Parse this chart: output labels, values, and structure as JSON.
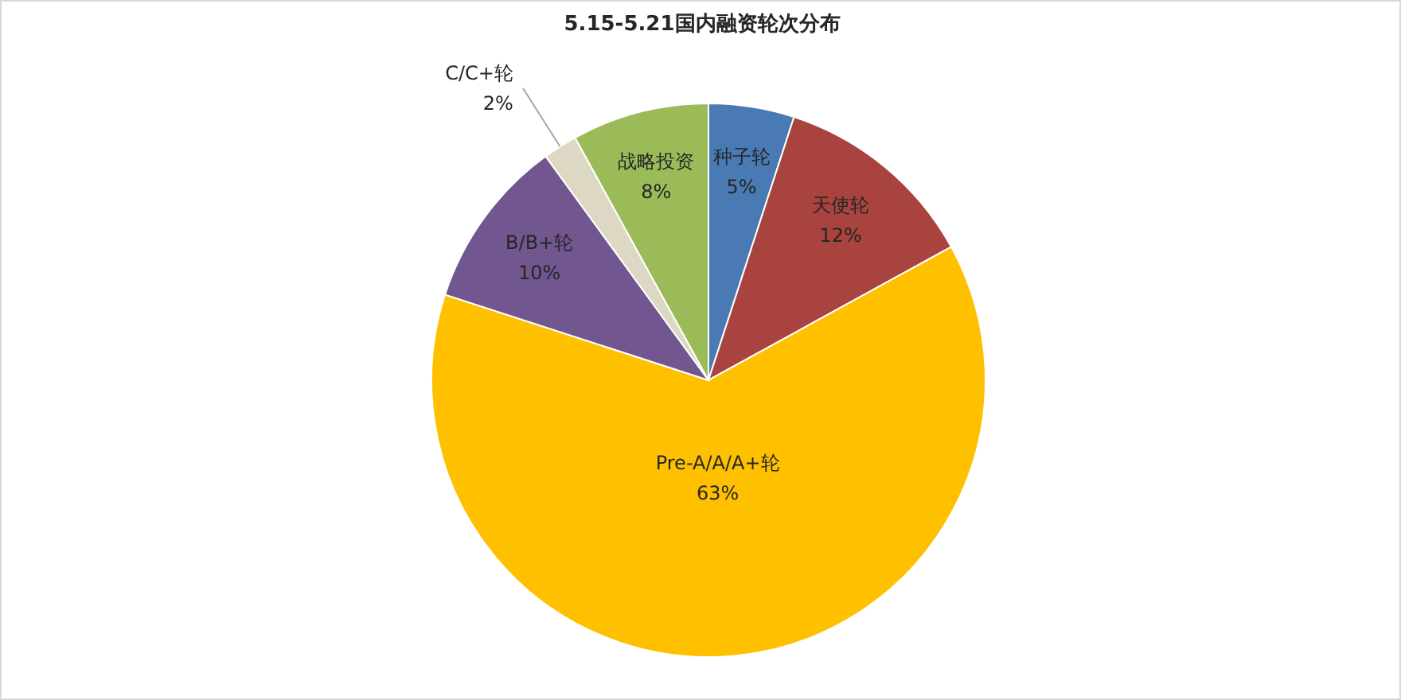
{
  "chart_data": {
    "type": "pie",
    "title": "5.15-5.21国内融资轮次分布",
    "categories": [
      "种子轮",
      "天使轮",
      "Pre-A/A/A+轮",
      "B/B+轮",
      "C/C+轮",
      "战略投资"
    ],
    "values": [
      5,
      12,
      63,
      10,
      2,
      8
    ],
    "value_labels": [
      "5%",
      "12%",
      "63%",
      "10%",
      "2%",
      "8%"
    ],
    "colors": [
      "#4a7ab4",
      "#a8433f",
      "#ffc000",
      "#71568f",
      "#dcd8c4",
      "#9bbb59"
    ]
  }
}
